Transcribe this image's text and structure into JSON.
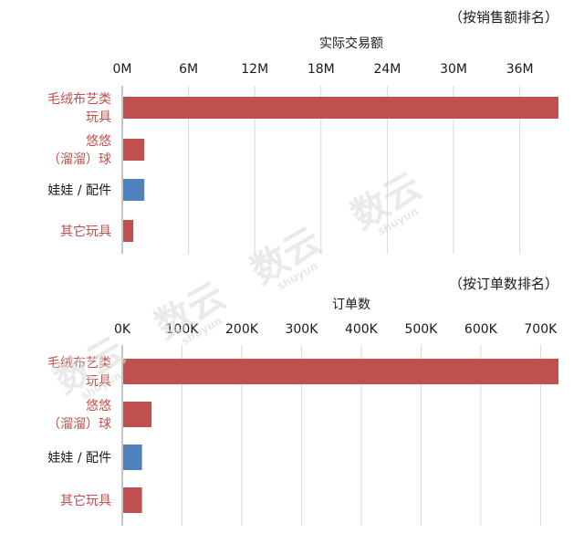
{
  "watermark": {
    "main": "数云",
    "sub": "shuyun"
  },
  "colors": {
    "red": "#c0504d",
    "blue": "#4f81bd",
    "grid": "#d9d9d9",
    "axis": "#8c8c8c",
    "red_label": "#c0504d",
    "dark_label": "#1a1a1a"
  },
  "chart_data": [
    {
      "type": "bar",
      "orientation": "horizontal",
      "note": "（按销售额排名）",
      "xlabel": "实际交易额",
      "x_axis_position": "top",
      "ticks": [
        "0M",
        "6M",
        "12M",
        "18M",
        "24M",
        "30M",
        "36M"
      ],
      "tick_values": [
        0,
        6000000,
        12000000,
        18000000,
        24000000,
        30000000,
        36000000
      ],
      "xlim": [
        0,
        39500000
      ],
      "grid": true,
      "categories": [
        {
          "lines": [
            "毛绒布艺类",
            "玩具"
          ],
          "value": 39500000,
          "color": "red"
        },
        {
          "lines": [
            "悠悠",
            "（溜溜）球"
          ],
          "value": 2000000,
          "color": "red"
        },
        {
          "lines": [
            "娃娃 / 配件"
          ],
          "value": 2000000,
          "color": "blue"
        },
        {
          "lines": [
            "其它玩具"
          ],
          "value": 1000000,
          "color": "red"
        }
      ]
    },
    {
      "type": "bar",
      "orientation": "horizontal",
      "note": "（按订单数排名）",
      "xlabel": "订单数",
      "x_axis_position": "top",
      "ticks": [
        "0K",
        "100K",
        "200K",
        "300K",
        "400K",
        "500K",
        "600K",
        "700K"
      ],
      "tick_values": [
        0,
        100000,
        200000,
        300000,
        400000,
        500000,
        600000,
        700000
      ],
      "xlim": [
        0,
        730000
      ],
      "grid": true,
      "categories": [
        {
          "lines": [
            "毛绒布艺类",
            "玩具"
          ],
          "value": 730000,
          "color": "red"
        },
        {
          "lines": [
            "悠悠",
            "（溜溜）球"
          ],
          "value": 49000,
          "color": "red"
        },
        {
          "lines": [
            "娃娃 / 配件"
          ],
          "value": 33000,
          "color": "blue"
        },
        {
          "lines": [
            "其它玩具"
          ],
          "value": 33000,
          "color": "red"
        }
      ]
    }
  ]
}
